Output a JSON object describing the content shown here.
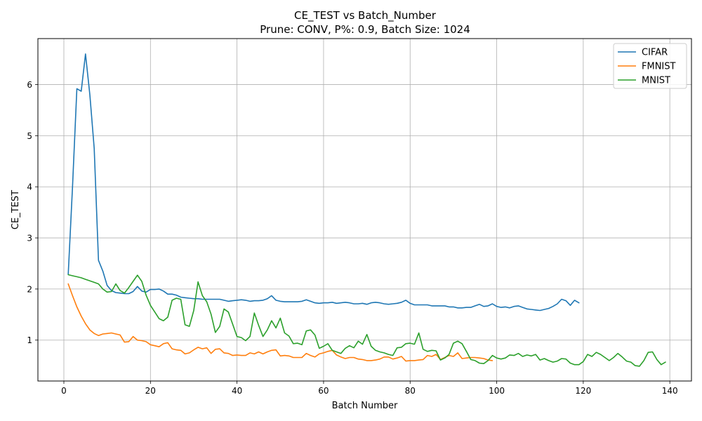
{
  "chart_data": {
    "type": "line",
    "title": "CE_TEST vs Batch_Number",
    "subtitle": "Prune: CONV, P%: 0.9, Batch Size: 1024",
    "xlabel": "Batch Number",
    "ylabel": "CE_TEST",
    "xlim": [
      -6,
      145
    ],
    "ylim": [
      0.2,
      6.9
    ],
    "xticks": [
      0,
      20,
      40,
      60,
      80,
      100,
      120,
      140
    ],
    "yticks": [
      1,
      2,
      3,
      4,
      5,
      6
    ],
    "grid": true,
    "legend_position": "top-right",
    "series": [
      {
        "name": "CIFAR",
        "color": "#1f77b4",
        "x": [
          1,
          2,
          3,
          4,
          5,
          6,
          7,
          8,
          9,
          10,
          11,
          12,
          13,
          14,
          15,
          16,
          17,
          18,
          19,
          20,
          21,
          22,
          23,
          24,
          25,
          26,
          27,
          28,
          29,
          30,
          31,
          32,
          33,
          34,
          35,
          36,
          37,
          38,
          39,
          40,
          41,
          42,
          43,
          44,
          45,
          46,
          47,
          48,
          49,
          50,
          51,
          52,
          53,
          54,
          55,
          56,
          57,
          58,
          59,
          60,
          61,
          62,
          63,
          64,
          65,
          66,
          67,
          68,
          69,
          70,
          71,
          72,
          73,
          74,
          75,
          76,
          77,
          78,
          79,
          80,
          81,
          82,
          83,
          84,
          85,
          86,
          87,
          88,
          89,
          90,
          91,
          92,
          93,
          94,
          95,
          96,
          97,
          98,
          99,
          100,
          101,
          102,
          103,
          104,
          105,
          106,
          107,
          108,
          109,
          110,
          111,
          112,
          113,
          114,
          115,
          116,
          117,
          118,
          119
        ],
        "values": [
          2.29,
          4.0,
          5.92,
          5.87,
          6.6,
          5.8,
          4.75,
          2.56,
          2.35,
          2.07,
          1.97,
          1.93,
          1.92,
          1.91,
          1.91,
          1.95,
          2.05,
          1.96,
          1.94,
          1.99,
          1.99,
          2.0,
          1.96,
          1.9,
          1.9,
          1.88,
          1.84,
          1.83,
          1.82,
          1.81,
          1.81,
          1.8,
          1.8,
          1.8,
          1.8,
          1.8,
          1.78,
          1.76,
          1.77,
          1.78,
          1.79,
          1.78,
          1.76,
          1.77,
          1.77,
          1.78,
          1.81,
          1.87,
          1.78,
          1.76,
          1.75,
          1.75,
          1.75,
          1.75,
          1.76,
          1.79,
          1.76,
          1.73,
          1.72,
          1.73,
          1.73,
          1.74,
          1.72,
          1.73,
          1.74,
          1.73,
          1.71,
          1.71,
          1.72,
          1.7,
          1.73,
          1.74,
          1.73,
          1.71,
          1.7,
          1.71,
          1.72,
          1.74,
          1.78,
          1.72,
          1.69,
          1.69,
          1.69,
          1.69,
          1.67,
          1.67,
          1.67,
          1.67,
          1.65,
          1.65,
          1.63,
          1.63,
          1.64,
          1.64,
          1.67,
          1.7,
          1.66,
          1.67,
          1.71,
          1.66,
          1.64,
          1.65,
          1.63,
          1.66,
          1.67,
          1.64,
          1.61,
          1.6,
          1.59,
          1.58,
          1.6,
          1.62,
          1.66,
          1.71,
          1.8,
          1.77,
          1.68,
          1.78,
          1.73
        ]
      },
      {
        "name": "FMNIST",
        "color": "#ff7f0e",
        "x": [
          1,
          2,
          3,
          4,
          5,
          6,
          7,
          8,
          9,
          10,
          11,
          12,
          13,
          14,
          15,
          16,
          17,
          18,
          19,
          20,
          21,
          22,
          23,
          24,
          25,
          26,
          27,
          28,
          29,
          30,
          31,
          32,
          33,
          34,
          35,
          36,
          37,
          38,
          39,
          40,
          41,
          42,
          43,
          44,
          45,
          46,
          47,
          48,
          49,
          50,
          51,
          52,
          53,
          54,
          55,
          56,
          57,
          58,
          59,
          60,
          61,
          62,
          63,
          64,
          65,
          66,
          67,
          68,
          69,
          70,
          71,
          72,
          73,
          74,
          75,
          76,
          77,
          78,
          79,
          80,
          81,
          82,
          83,
          84,
          85,
          86,
          87,
          88,
          89,
          90,
          91,
          92,
          93,
          94,
          95,
          96,
          97,
          98,
          99
        ],
        "values": [
          2.1,
          1.87,
          1.65,
          1.47,
          1.32,
          1.2,
          1.13,
          1.09,
          1.12,
          1.13,
          1.14,
          1.12,
          1.1,
          0.96,
          0.97,
          1.07,
          1.0,
          0.99,
          0.97,
          0.91,
          0.89,
          0.87,
          0.93,
          0.95,
          0.83,
          0.81,
          0.8,
          0.73,
          0.75,
          0.81,
          0.86,
          0.83,
          0.85,
          0.74,
          0.82,
          0.83,
          0.75,
          0.74,
          0.7,
          0.71,
          0.7,
          0.7,
          0.75,
          0.73,
          0.77,
          0.73,
          0.77,
          0.8,
          0.81,
          0.69,
          0.7,
          0.69,
          0.66,
          0.66,
          0.66,
          0.74,
          0.7,
          0.67,
          0.73,
          0.75,
          0.78,
          0.8,
          0.71,
          0.67,
          0.64,
          0.66,
          0.66,
          0.63,
          0.62,
          0.6,
          0.6,
          0.61,
          0.63,
          0.67,
          0.67,
          0.63,
          0.65,
          0.68,
          0.59,
          0.6,
          0.6,
          0.61,
          0.62,
          0.7,
          0.68,
          0.72,
          0.62,
          0.66,
          0.7,
          0.68,
          0.75,
          0.64,
          0.65,
          0.66,
          0.66,
          0.65,
          0.64,
          0.61,
          0.6
        ]
      },
      {
        "name": "MNIST",
        "color": "#2ca02c",
        "x": [
          1,
          2,
          3,
          4,
          5,
          6,
          7,
          8,
          9,
          10,
          11,
          12,
          13,
          14,
          15,
          16,
          17,
          18,
          19,
          20,
          21,
          22,
          23,
          24,
          25,
          26,
          27,
          28,
          29,
          30,
          31,
          32,
          33,
          34,
          35,
          36,
          37,
          38,
          39,
          40,
          41,
          42,
          43,
          44,
          45,
          46,
          47,
          48,
          49,
          50,
          51,
          52,
          53,
          54,
          55,
          56,
          57,
          58,
          59,
          60,
          61,
          62,
          63,
          64,
          65,
          66,
          67,
          68,
          69,
          70,
          71,
          72,
          73,
          74,
          75,
          76,
          77,
          78,
          79,
          80,
          81,
          82,
          83,
          84,
          85,
          86,
          87,
          88,
          89,
          90,
          91,
          92,
          93,
          94,
          95,
          96,
          97,
          98,
          99,
          100,
          101,
          102,
          103,
          104,
          105,
          106,
          107,
          108,
          109,
          110,
          111,
          112,
          113,
          114,
          115,
          116,
          117,
          118,
          119,
          120,
          121,
          122,
          123,
          124,
          125,
          126,
          127,
          128,
          129,
          130,
          131,
          132,
          133,
          134,
          135,
          136,
          137,
          138,
          139
        ],
        "values": [
          2.28,
          2.26,
          2.24,
          2.22,
          2.19,
          2.16,
          2.13,
          2.1,
          2.0,
          1.94,
          1.95,
          2.1,
          1.97,
          1.92,
          2.03,
          2.15,
          2.27,
          2.15,
          1.88,
          1.68,
          1.55,
          1.42,
          1.38,
          1.45,
          1.78,
          1.82,
          1.8,
          1.3,
          1.27,
          1.58,
          2.14,
          1.87,
          1.75,
          1.51,
          1.15,
          1.27,
          1.61,
          1.55,
          1.31,
          1.07,
          1.05,
          0.99,
          1.07,
          1.53,
          1.29,
          1.07,
          1.2,
          1.38,
          1.24,
          1.43,
          1.14,
          1.08,
          0.93,
          0.94,
          0.91,
          1.18,
          1.2,
          1.1,
          0.84,
          0.88,
          0.93,
          0.8,
          0.77,
          0.74,
          0.84,
          0.89,
          0.85,
          0.98,
          0.92,
          1.11,
          0.88,
          0.8,
          0.77,
          0.75,
          0.72,
          0.7,
          0.85,
          0.86,
          0.93,
          0.94,
          0.92,
          1.14,
          0.82,
          0.78,
          0.8,
          0.79,
          0.61,
          0.65,
          0.72,
          0.94,
          0.98,
          0.93,
          0.78,
          0.62,
          0.6,
          0.55,
          0.54,
          0.6,
          0.7,
          0.65,
          0.63,
          0.65,
          0.71,
          0.7,
          0.74,
          0.68,
          0.71,
          0.69,
          0.72,
          0.61,
          0.64,
          0.6,
          0.57,
          0.59,
          0.64,
          0.63,
          0.55,
          0.52,
          0.52,
          0.58,
          0.72,
          0.68,
          0.76,
          0.72,
          0.66,
          0.6,
          0.66,
          0.74,
          0.67,
          0.59,
          0.57,
          0.5,
          0.49,
          0.6,
          0.76,
          0.77,
          0.62,
          0.52,
          0.57
        ]
      }
    ]
  }
}
